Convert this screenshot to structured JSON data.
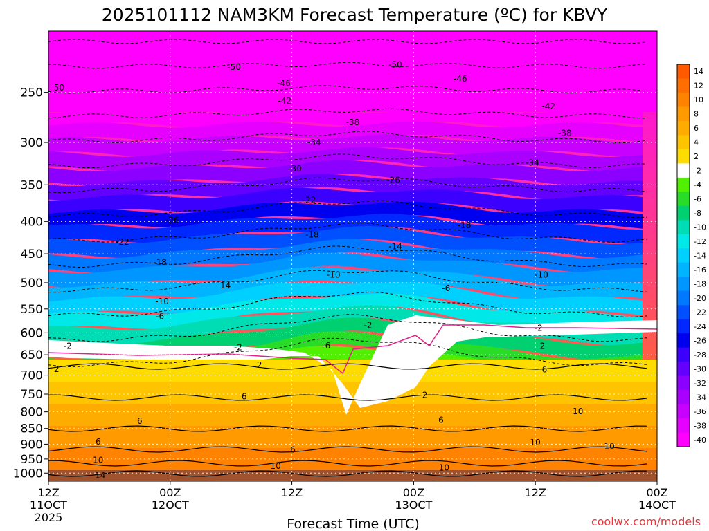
{
  "chart_data": {
    "type": "heatmap",
    "title": "2025101112 NAM3KM Forecast Temperature (ºC) for KBVY",
    "xlabel": "Forecast Time (UTC)",
    "ylabel": "",
    "credit": "coolwx.com/models",
    "x_ticks": [
      {
        "hours": 0,
        "line1": "12Z",
        "line2": "11OCT",
        "line3": "2025"
      },
      {
        "hours": 12,
        "line1": "00Z",
        "line2": "12OCT",
        "line3": ""
      },
      {
        "hours": 24,
        "line1": "12Z",
        "line2": "",
        "line3": ""
      },
      {
        "hours": 36,
        "line1": "00Z",
        "line2": "13OCT",
        "line3": ""
      },
      {
        "hours": 48,
        "line1": "12Z",
        "line2": "",
        "line3": ""
      },
      {
        "hours": 60,
        "line1": "00Z",
        "line2": "14OCT",
        "line3": ""
      }
    ],
    "xlim": [
      0,
      60
    ],
    "y_ticks": [
      "250",
      "300",
      "350",
      "400",
      "450",
      "500",
      "550",
      "600",
      "650",
      "700",
      "750",
      "800",
      "850",
      "900",
      "950",
      "1000"
    ],
    "y_tick_values": [
      250,
      300,
      350,
      400,
      450,
      500,
      550,
      600,
      650,
      700,
      750,
      800,
      850,
      900,
      950,
      1000
    ],
    "ylim_hpa": [
      1030,
      200
    ],
    "colorbar_labels": [
      "14",
      "12",
      "10",
      "8",
      "6",
      "4",
      "2",
      "-2",
      "-4",
      "-6",
      "-8",
      "-10",
      "-12",
      "-14",
      "-16",
      "-18",
      "-20",
      "-22",
      "-24",
      "-26",
      "-28",
      "-30",
      "-32",
      "-34",
      "-36",
      "-38",
      "-40"
    ],
    "colorbar_colors": [
      "#ff5a00",
      "#ff6e00",
      "#ff8200",
      "#ff9a00",
      "#ffac00",
      "#ffc400",
      "#ffdc00",
      "#ffffff",
      "#50f000",
      "#28dc28",
      "#00d070",
      "#00dcb4",
      "#00e8e8",
      "#00d0ff",
      "#00b4ff",
      "#0096ff",
      "#0078ff",
      "#0050ff",
      "#0028ff",
      "#0000f0",
      "#3c00ff",
      "#6400ff",
      "#8c00ff",
      "#aa00ff",
      "#c800ff",
      "#e600ff",
      "#ff00ff"
    ],
    "contour_labels": [
      {
        "text": "-50",
        "hours": 0.9,
        "hpa": 246
      },
      {
        "text": "-50",
        "hours": 18.3,
        "hpa": 228
      },
      {
        "text": "-50",
        "hours": 34.2,
        "hpa": 226
      },
      {
        "text": "-46",
        "hours": 23.2,
        "hpa": 242
      },
      {
        "text": "-46",
        "hours": 40.6,
        "hpa": 238
      },
      {
        "text": "-42",
        "hours": 23.3,
        "hpa": 258
      },
      {
        "text": "-42",
        "hours": 49.3,
        "hpa": 263
      },
      {
        "text": "-38",
        "hours": 30.0,
        "hpa": 279
      },
      {
        "text": "-38",
        "hours": 50.9,
        "hpa": 290
      },
      {
        "text": "-34",
        "hours": 26.2,
        "hpa": 300
      },
      {
        "text": "-34",
        "hours": 47.7,
        "hpa": 323
      },
      {
        "text": "-30",
        "hours": 24.3,
        "hpa": 330
      },
      {
        "text": "-26",
        "hours": 34.0,
        "hpa": 344
      },
      {
        "text": "-26",
        "hours": 12.2,
        "hpa": 398
      },
      {
        "text": "-22",
        "hours": 25.7,
        "hpa": 370
      },
      {
        "text": "-22",
        "hours": 7.3,
        "hpa": 431
      },
      {
        "text": "-18",
        "hours": 26.0,
        "hpa": 420
      },
      {
        "text": "-18",
        "hours": 41.0,
        "hpa": 406
      },
      {
        "text": "-18",
        "hours": 11.0,
        "hpa": 464
      },
      {
        "text": "-14",
        "hours": 34.2,
        "hpa": 438
      },
      {
        "text": "-14",
        "hours": 17.3,
        "hpa": 505
      },
      {
        "text": "-10",
        "hours": 28.1,
        "hpa": 486
      },
      {
        "text": "-10",
        "hours": 48.6,
        "hpa": 486
      },
      {
        "text": "-10",
        "hours": 11.2,
        "hpa": 535
      },
      {
        "text": "-6",
        "hours": 39.2,
        "hpa": 510
      },
      {
        "text": "-6",
        "hours": 11.0,
        "hpa": 565
      },
      {
        "text": "-6",
        "hours": 27.4,
        "hpa": 629
      },
      {
        "text": "-2",
        "hours": 31.5,
        "hpa": 584
      },
      {
        "text": "-2",
        "hours": 48.3,
        "hpa": 590
      },
      {
        "text": "-2",
        "hours": 18.7,
        "hpa": 633
      },
      {
        "text": "-2",
        "hours": 1.9,
        "hpa": 630
      },
      {
        "text": "2",
        "hours": 48.7,
        "hpa": 630
      },
      {
        "text": "2",
        "hours": 20.8,
        "hpa": 675
      },
      {
        "text": "2",
        "hours": 0.8,
        "hpa": 685
      },
      {
        "text": "2",
        "hours": 37.1,
        "hpa": 753
      },
      {
        "text": "6",
        "hours": 48.9,
        "hpa": 686
      },
      {
        "text": "6",
        "hours": 19.3,
        "hpa": 757
      },
      {
        "text": "6",
        "hours": 9.0,
        "hpa": 827
      },
      {
        "text": "6",
        "hours": 4.9,
        "hpa": 892
      },
      {
        "text": "6",
        "hours": 24.1,
        "hpa": 918
      },
      {
        "text": "6",
        "hours": 38.7,
        "hpa": 824
      },
      {
        "text": "10",
        "hours": 52.2,
        "hpa": 799
      },
      {
        "text": "10",
        "hours": 48.0,
        "hpa": 894
      },
      {
        "text": "10",
        "hours": 55.3,
        "hpa": 907
      },
      {
        "text": "10",
        "hours": 4.9,
        "hpa": 954
      },
      {
        "text": "10",
        "hours": 22.4,
        "hpa": 974
      },
      {
        "text": "10",
        "hours": 39.0,
        "hpa": 981
      },
      {
        "text": "14",
        "hours": 5.1,
        "hpa": 1008
      }
    ]
  }
}
